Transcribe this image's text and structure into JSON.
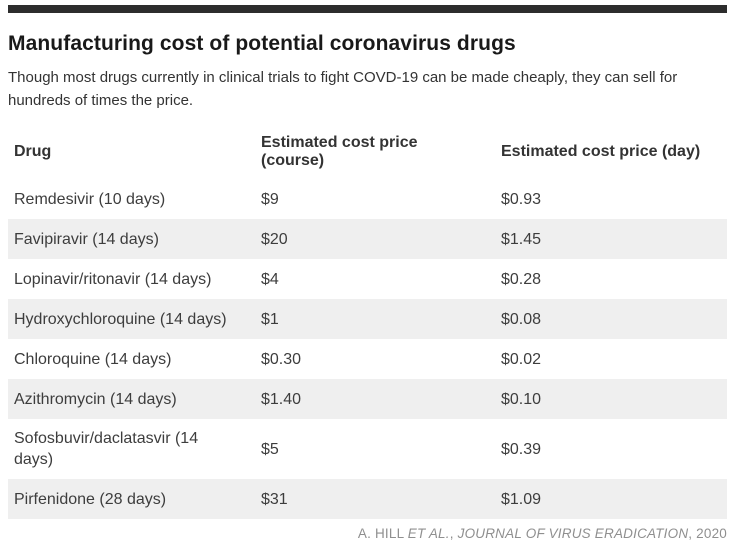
{
  "chart_data": {
    "type": "table",
    "title": "Manufacturing cost of potential coronavirus drugs",
    "subtitle": "Though most drugs currently in clinical trials to fight COVD-19 can be made cheaply, they can sell for hundreds of times the price.",
    "columns": [
      "Drug",
      "Estimated cost price (course)",
      "Estimated cost price (day)"
    ],
    "rows": [
      {
        "drug": "Remdesivir (10 days)",
        "course": "$9",
        "day": "$0.93"
      },
      {
        "drug": "Favipiravir (14 days)",
        "course": "$20",
        "day": "$1.45"
      },
      {
        "drug": "Lopinavir/ritonavir (14 days)",
        "course": "$4",
        "day": "$0.28"
      },
      {
        "drug": "Hydroxychloroquine (14 days)",
        "course": "$1",
        "day": "$0.08"
      },
      {
        "drug": "Chloroquine (14 days)",
        "course": "$0.30",
        "day": "$0.02"
      },
      {
        "drug": "Azithromycin (14 days)",
        "course": "$1.40",
        "day": "$0.10"
      },
      {
        "drug": "Sofosbuvir/daclatasvir (14 days)",
        "course": "$5",
        "day": "$0.39"
      },
      {
        "drug": "Pirfenidone (28 days)",
        "course": "$31",
        "day": "$1.09"
      }
    ],
    "source": {
      "prefix": "A. HILL ",
      "et_al": "ET AL.",
      "sep": ", ",
      "journal": "JOURNAL OF VIRUS ERADICATION",
      "suffix": ", 2020"
    },
    "layout": {
      "grid": "off",
      "legend": "none",
      "row_striping": "alternate gray starting second row"
    }
  },
  "colors": {
    "top_bar": "#2d2d2d",
    "title_text": "#191919",
    "body_text": "#333333",
    "row_alt_bg": "#efefef",
    "source_text": "#8f8f8f",
    "background": "#ffffff"
  }
}
